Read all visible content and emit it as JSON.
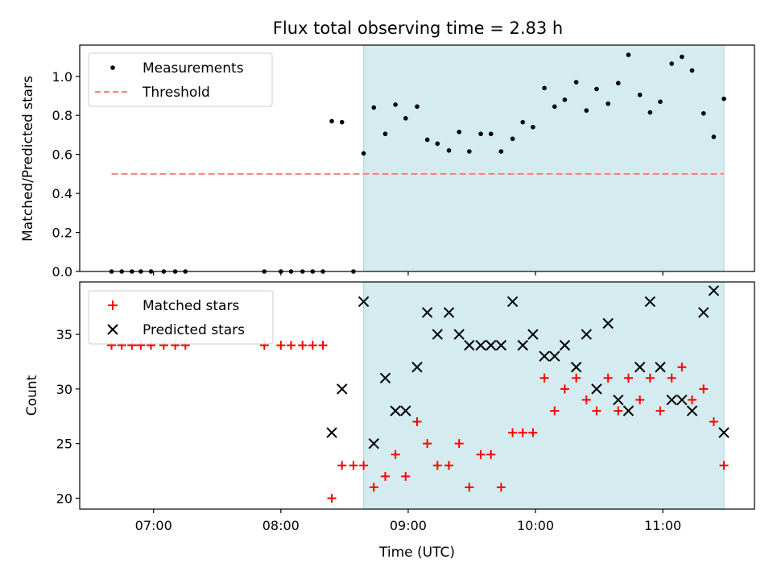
{
  "chart_data": [
    {
      "type": "scatter",
      "title": "Flux total observing time = 2.83 h",
      "xlabel": "",
      "ylabel": "Matched/Predicted stars",
      "xlim": [
        6.42,
        11.72
      ],
      "ylim": [
        0.0,
        1.16
      ],
      "xticks": [
        7,
        8,
        9,
        10,
        11
      ],
      "xtick_labels_shown": false,
      "yticks": [
        0.0,
        0.2,
        0.4,
        0.6,
        0.8,
        1.0
      ],
      "ytick_labels": [
        "0.0",
        "0.2",
        "0.4",
        "0.6",
        "0.8",
        "1.0"
      ],
      "shaded_interval": {
        "x": [
          8.65,
          11.48
        ],
        "color": "#d4ebf0"
      },
      "legend": {
        "placement": "top-left",
        "entries": [
          "Measurements",
          "Threshold"
        ]
      },
      "series": [
        {
          "name": "Measurements",
          "marker": "dot",
          "color": "#000000",
          "points": [
            [
              6.67,
              0.0
            ],
            [
              6.75,
              0.0
            ],
            [
              6.83,
              0.0
            ],
            [
              6.9,
              0.0
            ],
            [
              6.98,
              0.0
            ],
            [
              7.08,
              0.0
            ],
            [
              7.17,
              0.0
            ],
            [
              7.25,
              0.0
            ],
            [
              7.87,
              0.0
            ],
            [
              8.0,
              0.0
            ],
            [
              8.08,
              0.0
            ],
            [
              8.17,
              0.0
            ],
            [
              8.25,
              0.0
            ],
            [
              8.33,
              0.0
            ],
            [
              8.4,
              0.77
            ],
            [
              8.48,
              0.765
            ],
            [
              8.57,
              0.0
            ],
            [
              8.65,
              0.605
            ],
            [
              8.73,
              0.84
            ],
            [
              8.82,
              0.705
            ],
            [
              8.9,
              0.855
            ],
            [
              8.98,
              0.785
            ],
            [
              9.07,
              0.845
            ],
            [
              9.15,
              0.675
            ],
            [
              9.23,
              0.655
            ],
            [
              9.32,
              0.62
            ],
            [
              9.4,
              0.715
            ],
            [
              9.48,
              0.615
            ],
            [
              9.57,
              0.705
            ],
            [
              9.65,
              0.705
            ],
            [
              9.73,
              0.615
            ],
            [
              9.82,
              0.68
            ],
            [
              9.9,
              0.765
            ],
            [
              9.98,
              0.74
            ],
            [
              10.07,
              0.94
            ],
            [
              10.15,
              0.845
            ],
            [
              10.23,
              0.88
            ],
            [
              10.32,
              0.97
            ],
            [
              10.4,
              0.825
            ],
            [
              10.48,
              0.935
            ],
            [
              10.57,
              0.86
            ],
            [
              10.65,
              0.965
            ],
            [
              10.73,
              1.11
            ],
            [
              10.82,
              0.905
            ],
            [
              10.9,
              0.815
            ],
            [
              10.98,
              0.87
            ],
            [
              11.07,
              1.065
            ],
            [
              11.15,
              1.1
            ],
            [
              11.23,
              1.03
            ],
            [
              11.32,
              0.81
            ],
            [
              11.4,
              0.69
            ],
            [
              11.48,
              0.885
            ]
          ]
        },
        {
          "name": "Threshold",
          "marker": "dashed-line",
          "color": "#ff7f7f",
          "y": 0.5,
          "x": [
            6.67,
            11.48
          ]
        }
      ]
    },
    {
      "type": "scatter",
      "title": "",
      "xlabel": "Time (UTC)",
      "ylabel": "Count",
      "xlim": [
        6.42,
        11.72
      ],
      "ylim": [
        19.0,
        39.8
      ],
      "xticks": [
        7,
        8,
        9,
        10,
        11
      ],
      "xtick_labels": [
        "07:00",
        "08:00",
        "09:00",
        "10:00",
        "11:00"
      ],
      "yticks": [
        20,
        25,
        30,
        35
      ],
      "ytick_labels": [
        "20",
        "25",
        "30",
        "35"
      ],
      "shaded_interval": {
        "x": [
          8.65,
          11.48
        ],
        "color": "#d4ebf0"
      },
      "legend": {
        "placement": "top-left",
        "entries": [
          "Matched stars",
          "Predicted stars"
        ]
      },
      "series": [
        {
          "name": "Matched stars",
          "marker": "plus",
          "color": "#ff0000",
          "points": [
            [
              6.67,
              34
            ],
            [
              6.75,
              34
            ],
            [
              6.83,
              34
            ],
            [
              6.9,
              34
            ],
            [
              6.98,
              34
            ],
            [
              7.08,
              34
            ],
            [
              7.17,
              34
            ],
            [
              7.25,
              34
            ],
            [
              7.87,
              34
            ],
            [
              8.0,
              34
            ],
            [
              8.08,
              34
            ],
            [
              8.17,
              34
            ],
            [
              8.25,
              34
            ],
            [
              8.33,
              34
            ],
            [
              8.4,
              20
            ],
            [
              8.48,
              23
            ],
            [
              8.57,
              23
            ],
            [
              8.65,
              23
            ],
            [
              8.73,
              21
            ],
            [
              8.82,
              22
            ],
            [
              8.9,
              24
            ],
            [
              8.98,
              22
            ],
            [
              9.07,
              27
            ],
            [
              9.15,
              25
            ],
            [
              9.23,
              23
            ],
            [
              9.32,
              23
            ],
            [
              9.4,
              25
            ],
            [
              9.48,
              21
            ],
            [
              9.57,
              24
            ],
            [
              9.65,
              24
            ],
            [
              9.73,
              21
            ],
            [
              9.82,
              26
            ],
            [
              9.9,
              26
            ],
            [
              9.98,
              26
            ],
            [
              10.07,
              31
            ],
            [
              10.15,
              28
            ],
            [
              10.23,
              30
            ],
            [
              10.32,
              31
            ],
            [
              10.4,
              29
            ],
            [
              10.48,
              28
            ],
            [
              10.57,
              31
            ],
            [
              10.65,
              28
            ],
            [
              10.73,
              31
            ],
            [
              10.82,
              29
            ],
            [
              10.9,
              31
            ],
            [
              10.98,
              28
            ],
            [
              11.07,
              31
            ],
            [
              11.15,
              32
            ],
            [
              11.23,
              29
            ],
            [
              11.32,
              30
            ],
            [
              11.4,
              27
            ],
            [
              11.48,
              23
            ]
          ]
        },
        {
          "name": "Predicted stars",
          "marker": "x",
          "color": "#000000",
          "points": [
            [
              8.4,
              26
            ],
            [
              8.48,
              30
            ],
            [
              8.65,
              38
            ],
            [
              8.73,
              25
            ],
            [
              8.82,
              31
            ],
            [
              8.9,
              28
            ],
            [
              8.98,
              28
            ],
            [
              9.07,
              32
            ],
            [
              9.15,
              37
            ],
            [
              9.23,
              35
            ],
            [
              9.32,
              37
            ],
            [
              9.4,
              35
            ],
            [
              9.48,
              34
            ],
            [
              9.57,
              34
            ],
            [
              9.65,
              34
            ],
            [
              9.73,
              34
            ],
            [
              9.82,
              38
            ],
            [
              9.9,
              34
            ],
            [
              9.98,
              35
            ],
            [
              10.07,
              33
            ],
            [
              10.15,
              33
            ],
            [
              10.23,
              34
            ],
            [
              10.32,
              32
            ],
            [
              10.4,
              35
            ],
            [
              10.48,
              30
            ],
            [
              10.57,
              36
            ],
            [
              10.65,
              29
            ],
            [
              10.73,
              28
            ],
            [
              10.82,
              32
            ],
            [
              10.9,
              38
            ],
            [
              10.98,
              32
            ],
            [
              11.07,
              29
            ],
            [
              11.15,
              29
            ],
            [
              11.23,
              28
            ],
            [
              11.32,
              37
            ],
            [
              11.4,
              39
            ],
            [
              11.48,
              26
            ]
          ]
        }
      ]
    }
  ]
}
